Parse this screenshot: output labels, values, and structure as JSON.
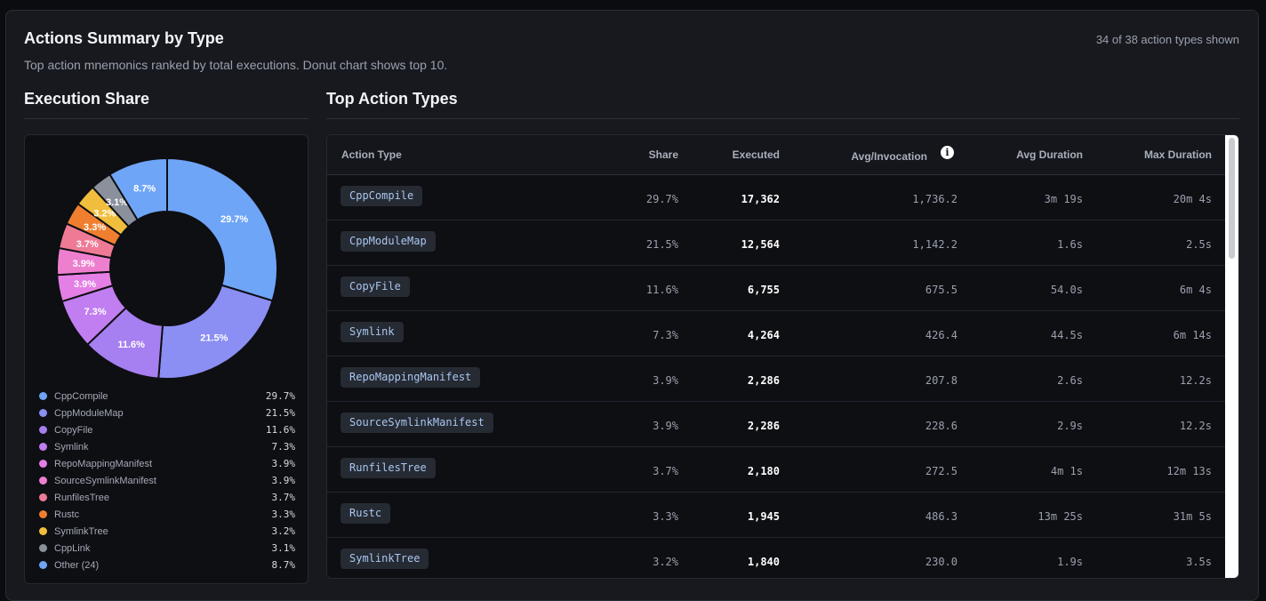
{
  "header": {
    "title": "Actions Summary by Type",
    "subtitle": "Top action mnemonics ranked by total executions. Donut chart shows top 10.",
    "count_text": "34 of 38 action types shown"
  },
  "left_panel": {
    "title": "Execution Share"
  },
  "right_panel": {
    "title": "Top Action Types"
  },
  "table": {
    "columns": [
      "Action Type",
      "Share",
      "Executed",
      "Avg/Invocation",
      "Avg Duration",
      "Max Duration"
    ],
    "info_icon": "info-icon",
    "rows": [
      {
        "type": "CppCompile",
        "share": "29.7%",
        "executed": "17,362",
        "avg_inv": "1,736.2",
        "avg_dur": "3m 19s",
        "max_dur": "20m 4s"
      },
      {
        "type": "CppModuleMap",
        "share": "21.5%",
        "executed": "12,564",
        "avg_inv": "1,142.2",
        "avg_dur": "1.6s",
        "max_dur": "2.5s"
      },
      {
        "type": "CopyFile",
        "share": "11.6%",
        "executed": "6,755",
        "avg_inv": "675.5",
        "avg_dur": "54.0s",
        "max_dur": "6m 4s"
      },
      {
        "type": "Symlink",
        "share": "7.3%",
        "executed": "4,264",
        "avg_inv": "426.4",
        "avg_dur": "44.5s",
        "max_dur": "6m 14s"
      },
      {
        "type": "RepoMappingManifest",
        "share": "3.9%",
        "executed": "2,286",
        "avg_inv": "207.8",
        "avg_dur": "2.6s",
        "max_dur": "12.2s"
      },
      {
        "type": "SourceSymlinkManifest",
        "share": "3.9%",
        "executed": "2,286",
        "avg_inv": "228.6",
        "avg_dur": "2.9s",
        "max_dur": "12.2s"
      },
      {
        "type": "RunfilesTree",
        "share": "3.7%",
        "executed": "2,180",
        "avg_inv": "272.5",
        "avg_dur": "4m 1s",
        "max_dur": "12m 13s"
      },
      {
        "type": "Rustc",
        "share": "3.3%",
        "executed": "1,945",
        "avg_inv": "486.3",
        "avg_dur": "13m 25s",
        "max_dur": "31m 5s"
      },
      {
        "type": "SymlinkTree",
        "share": "3.2%",
        "executed": "1,840",
        "avg_inv": "230.0",
        "avg_dur": "1.9s",
        "max_dur": "3.5s"
      }
    ]
  },
  "chart_data": {
    "type": "pie",
    "donut": true,
    "slices": [
      {
        "label": "CppCompile",
        "value": 29.7,
        "display": "29.7%",
        "color": "#6fa5f7"
      },
      {
        "label": "CppModuleMap",
        "value": 21.5,
        "display": "21.5%",
        "color": "#8b8ef3"
      },
      {
        "label": "CopyFile",
        "value": 11.6,
        "display": "11.6%",
        "color": "#a67ff0"
      },
      {
        "label": "Symlink",
        "value": 7.3,
        "display": "7.3%",
        "color": "#c17ef0"
      },
      {
        "label": "RepoMappingManifest",
        "value": 3.9,
        "display": "3.9%",
        "color": "#e47fe6"
      },
      {
        "label": "SourceSymlinkManifest",
        "value": 3.9,
        "display": "3.9%",
        "color": "#ee7fcf"
      },
      {
        "label": "RunfilesTree",
        "value": 3.7,
        "display": "3.7%",
        "color": "#ef7a95"
      },
      {
        "label": "Rustc",
        "value": 3.3,
        "display": "3.3%",
        "color": "#ef7f2f"
      },
      {
        "label": "SymlinkTree",
        "value": 3.2,
        "display": "3.2%",
        "color": "#f0be3c"
      },
      {
        "label": "CppLink",
        "value": 3.1,
        "display": "3.1%",
        "color": "#8b919c"
      },
      {
        "label": "Other (24)",
        "value": 8.7,
        "display": "8.7%",
        "color": "#6fa5f7"
      }
    ]
  }
}
